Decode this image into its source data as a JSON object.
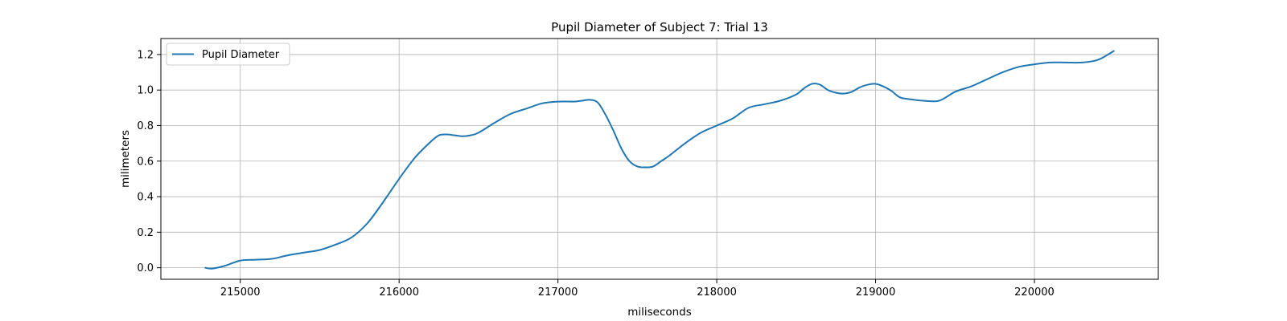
{
  "chart_data": {
    "type": "line",
    "title": "Pupil Diameter of Subject 7: Trial 13",
    "xlabel": "miliseconds",
    "ylabel": "milimeters",
    "xlim": [
      214500,
      220780
    ],
    "ylim": [
      -0.065,
      1.29
    ],
    "xticks": [
      215000,
      216000,
      217000,
      218000,
      219000,
      220000
    ],
    "yticks": [
      0.0,
      0.2,
      0.4,
      0.6,
      0.8,
      1.0,
      1.2
    ],
    "xtick_labels": [
      "215000",
      "216000",
      "217000",
      "218000",
      "219000",
      "220000"
    ],
    "ytick_labels": [
      "0.0",
      "0.2",
      "0.4",
      "0.6",
      "0.8",
      "1.0",
      "1.2"
    ],
    "grid": true,
    "legend": {
      "position": "upper-left",
      "entries": [
        "Pupil Diameter"
      ]
    },
    "series": [
      {
        "name": "Pupil Diameter",
        "color": "#1f77b4",
        "x": [
          214780,
          214820,
          214900,
          215000,
          215100,
          215200,
          215300,
          215400,
          215500,
          215600,
          215700,
          215800,
          215900,
          216000,
          216100,
          216200,
          216250,
          216300,
          216350,
          216400,
          216450,
          216500,
          216600,
          216700,
          216800,
          216900,
          217000,
          217100,
          217150,
          217200,
          217250,
          217300,
          217350,
          217400,
          217450,
          217500,
          217550,
          217600,
          217650,
          217700,
          217800,
          217900,
          218000,
          218100,
          218200,
          218300,
          218400,
          218500,
          218550,
          218600,
          218650,
          218700,
          218750,
          218800,
          218850,
          218900,
          218950,
          219000,
          219050,
          219100,
          219150,
          219200,
          219300,
          219400,
          219500,
          219600,
          219700,
          219800,
          219900,
          220000,
          220100,
          220200,
          220300,
          220400,
          220500
        ],
        "y": [
          0.0,
          -0.005,
          0.01,
          0.04,
          0.045,
          0.05,
          0.07,
          0.085,
          0.1,
          0.13,
          0.17,
          0.25,
          0.37,
          0.5,
          0.62,
          0.71,
          0.745,
          0.75,
          0.745,
          0.74,
          0.745,
          0.76,
          0.815,
          0.865,
          0.895,
          0.925,
          0.935,
          0.935,
          0.94,
          0.945,
          0.93,
          0.86,
          0.77,
          0.67,
          0.6,
          0.57,
          0.565,
          0.57,
          0.6,
          0.63,
          0.7,
          0.76,
          0.8,
          0.84,
          0.9,
          0.92,
          0.94,
          0.975,
          1.01,
          1.035,
          1.03,
          1.0,
          0.985,
          0.98,
          0.99,
          1.015,
          1.03,
          1.035,
          1.02,
          0.995,
          0.96,
          0.95,
          0.94,
          0.94,
          0.99,
          1.02,
          1.06,
          1.1,
          1.13,
          1.145,
          1.155,
          1.155,
          1.155,
          1.17,
          1.22
        ]
      }
    ]
  }
}
